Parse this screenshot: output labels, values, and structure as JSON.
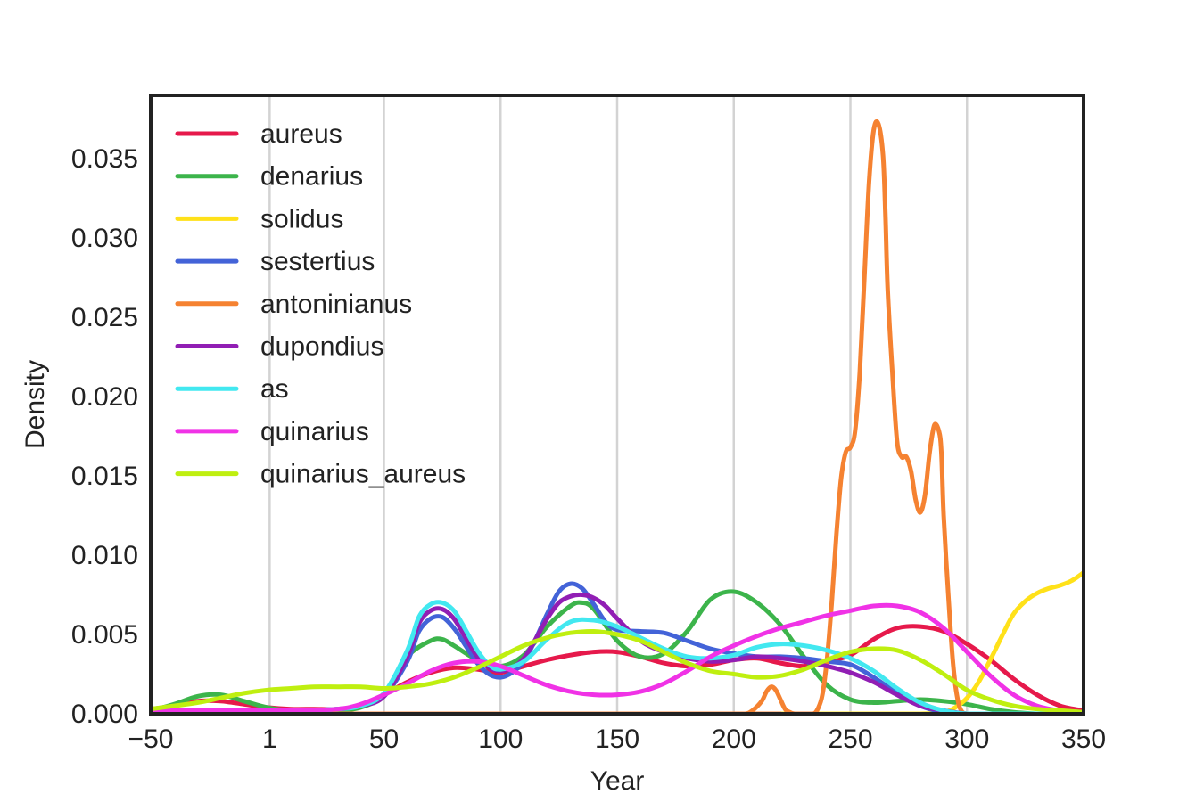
{
  "chart_data": {
    "type": "line",
    "title": "",
    "xlabel": "Year",
    "ylabel": "Density",
    "xlim": [
      -50,
      350
    ],
    "ylim": [
      0,
      0.039
    ],
    "grid": "vertical",
    "legend_position": "upper-left",
    "x_ticks": [
      {
        "value": -50,
        "label": "−50"
      },
      {
        "value": 1,
        "label": "1"
      },
      {
        "value": 50,
        "label": "50"
      },
      {
        "value": 100,
        "label": "100"
      },
      {
        "value": 150,
        "label": "150"
      },
      {
        "value": 200,
        "label": "200"
      },
      {
        "value": 250,
        "label": "250"
      },
      {
        "value": 300,
        "label": "300"
      },
      {
        "value": 350,
        "label": "350"
      }
    ],
    "y_ticks": [
      {
        "value": 0,
        "label": "0.000"
      },
      {
        "value": 0.005,
        "label": "0.005"
      },
      {
        "value": 0.01,
        "label": "0.010"
      },
      {
        "value": 0.015,
        "label": "0.015"
      },
      {
        "value": 0.02,
        "label": "0.020"
      },
      {
        "value": 0.025,
        "label": "0.025"
      },
      {
        "value": 0.03,
        "label": "0.030"
      },
      {
        "value": 0.035,
        "label": "0.035"
      }
    ],
    "series": [
      {
        "name": "aureus",
        "color": "#e6194b",
        "x": [
          -50,
          -40,
          -30,
          -20,
          -10,
          0,
          10,
          20,
          30,
          40,
          50,
          60,
          70,
          80,
          90,
          100,
          110,
          120,
          130,
          140,
          150,
          160,
          170,
          180,
          190,
          200,
          210,
          220,
          230,
          240,
          250,
          260,
          270,
          280,
          290,
          300,
          310,
          320,
          330,
          340,
          350
        ],
        "y": [
          0.0003,
          0.0005,
          0.0008,
          0.0008,
          0.0006,
          0.0004,
          0.0003,
          0.0003,
          0.0003,
          0.0005,
          0.0012,
          0.002,
          0.0026,
          0.0029,
          0.0028,
          0.0026,
          0.003,
          0.0034,
          0.0037,
          0.0039,
          0.0039,
          0.0036,
          0.0032,
          0.003,
          0.0031,
          0.0034,
          0.0035,
          0.0032,
          0.003,
          0.0033,
          0.0037,
          0.0047,
          0.0054,
          0.0055,
          0.0052,
          0.0044,
          0.0034,
          0.0022,
          0.0012,
          0.0005,
          0.0002
        ]
      },
      {
        "name": "denarius",
        "color": "#3cb44b",
        "x": [
          -50,
          -40,
          -30,
          -20,
          -10,
          0,
          10,
          20,
          30,
          40,
          50,
          60,
          70,
          75,
          80,
          90,
          100,
          110,
          120,
          130,
          135,
          140,
          150,
          160,
          170,
          180,
          190,
          200,
          210,
          220,
          230,
          240,
          250,
          260,
          270,
          280,
          290,
          300,
          310,
          320,
          330,
          340,
          350
        ],
        "y": [
          0.0002,
          0.0006,
          0.0011,
          0.0012,
          0.0008,
          0.0004,
          0.0002,
          0.0002,
          0.0002,
          0.0004,
          0.0012,
          0.0036,
          0.0046,
          0.0047,
          0.0043,
          0.0034,
          0.003,
          0.0037,
          0.0055,
          0.0068,
          0.007,
          0.0066,
          0.0046,
          0.0036,
          0.0038,
          0.0052,
          0.0072,
          0.0077,
          0.007,
          0.0056,
          0.0036,
          0.0018,
          0.0009,
          0.0007,
          0.0008,
          0.0009,
          0.0008,
          0.0006,
          0.0003,
          0.0001,
          0.0,
          0.0,
          0.0
        ]
      },
      {
        "name": "solidus",
        "color": "#ffe119",
        "x": [
          -50,
          260,
          280,
          290,
          295,
          300,
          305,
          310,
          315,
          320,
          325,
          330,
          335,
          340,
          345,
          350
        ],
        "y": [
          0,
          0,
          0,
          0.0001,
          0.0004,
          0.001,
          0.002,
          0.0034,
          0.0049,
          0.0063,
          0.0071,
          0.0076,
          0.0079,
          0.0081,
          0.0084,
          0.0089
        ]
      },
      {
        "name": "sestertius",
        "color": "#4363d8",
        "x": [
          -50,
          -30,
          -10,
          10,
          30,
          40,
          50,
          60,
          65,
          70,
          75,
          80,
          85,
          90,
          95,
          100,
          105,
          110,
          115,
          120,
          125,
          130,
          135,
          140,
          145,
          150,
          160,
          170,
          180,
          190,
          200,
          210,
          220,
          230,
          240,
          250,
          260,
          270,
          280,
          290,
          300,
          310,
          320,
          330,
          340,
          350
        ],
        "y": [
          0.0001,
          0.0002,
          0.0002,
          0.0002,
          0.0003,
          0.0005,
          0.0011,
          0.0033,
          0.0052,
          0.006,
          0.0061,
          0.0054,
          0.0043,
          0.0032,
          0.0025,
          0.0023,
          0.0026,
          0.0033,
          0.0047,
          0.0063,
          0.0077,
          0.0082,
          0.0079,
          0.0069,
          0.0058,
          0.0053,
          0.0052,
          0.0051,
          0.0046,
          0.0041,
          0.0038,
          0.0036,
          0.0036,
          0.0035,
          0.0033,
          0.0031,
          0.0023,
          0.0013,
          0.0005,
          0.0001,
          0,
          0,
          0,
          0,
          0,
          0
        ]
      },
      {
        "name": "antoninianus",
        "color": "#f58231",
        "x": [
          -50,
          200,
          205,
          208,
          212,
          214,
          216,
          218,
          220,
          222,
          224,
          226,
          230,
          234,
          236,
          238,
          240,
          242,
          244,
          246,
          248,
          250,
          252,
          254,
          256,
          258,
          260,
          262,
          264,
          265,
          266,
          268,
          270,
          272,
          274,
          276,
          278,
          280,
          282,
          284,
          286,
          288,
          289,
          290,
          292,
          294,
          296,
          298,
          300,
          302,
          350
        ],
        "y": [
          0,
          0,
          0,
          0.0002,
          0.0008,
          0.0014,
          0.0017,
          0.0015,
          0.0009,
          0.0003,
          0.0001,
          0,
          0,
          0,
          0.0003,
          0.0012,
          0.0035,
          0.007,
          0.0113,
          0.0148,
          0.0165,
          0.0168,
          0.0178,
          0.0215,
          0.0275,
          0.0335,
          0.0368,
          0.0372,
          0.0352,
          0.0316,
          0.0268,
          0.0215,
          0.0172,
          0.0162,
          0.0162,
          0.0153,
          0.0135,
          0.0127,
          0.0138,
          0.0165,
          0.0182,
          0.0178,
          0.0165,
          0.0125,
          0.0075,
          0.0032,
          0.0009,
          0.0001,
          0,
          0,
          0
        ]
      },
      {
        "name": "dupondius",
        "color": "#911eb4",
        "x": [
          -50,
          -30,
          -10,
          10,
          30,
          40,
          50,
          60,
          65,
          70,
          75,
          80,
          85,
          90,
          95,
          100,
          105,
          110,
          115,
          120,
          125,
          130,
          135,
          140,
          145,
          150,
          160,
          170,
          180,
          190,
          200,
          210,
          220,
          230,
          240,
          250,
          260,
          270,
          280,
          290,
          300,
          310,
          320,
          330,
          340,
          350
        ],
        "y": [
          0.0001,
          0.0002,
          0.0002,
          0.0002,
          0.0003,
          0.0005,
          0.0011,
          0.0036,
          0.0057,
          0.0065,
          0.0066,
          0.006,
          0.0048,
          0.0036,
          0.0029,
          0.0027,
          0.0029,
          0.0035,
          0.0047,
          0.006,
          0.007,
          0.0074,
          0.0075,
          0.0073,
          0.0068,
          0.006,
          0.0046,
          0.0039,
          0.0035,
          0.0033,
          0.0034,
          0.0036,
          0.0035,
          0.0033,
          0.003,
          0.0026,
          0.002,
          0.0012,
          0.0005,
          0.0002,
          0,
          0,
          0,
          0,
          0,
          0
        ]
      },
      {
        "name": "as",
        "color": "#42e8f0",
        "x": [
          -50,
          -30,
          -10,
          10,
          30,
          40,
          50,
          60,
          65,
          70,
          75,
          80,
          85,
          90,
          95,
          100,
          110,
          120,
          130,
          140,
          150,
          160,
          170,
          180,
          190,
          200,
          210,
          220,
          230,
          240,
          250,
          260,
          270,
          280,
          290,
          300,
          310,
          320,
          330,
          340,
          350
        ],
        "y": [
          0.0001,
          0.0002,
          0.0002,
          0.0002,
          0.0003,
          0.0005,
          0.0013,
          0.004,
          0.0061,
          0.0069,
          0.007,
          0.0065,
          0.0053,
          0.004,
          0.0031,
          0.0028,
          0.0033,
          0.0047,
          0.0058,
          0.0059,
          0.0055,
          0.0048,
          0.0041,
          0.0036,
          0.0035,
          0.0037,
          0.0042,
          0.0044,
          0.0043,
          0.004,
          0.0035,
          0.0027,
          0.0016,
          0.0007,
          0.0002,
          0,
          0,
          0,
          0,
          0,
          0
        ]
      },
      {
        "name": "quinarius",
        "color": "#f032e6",
        "x": [
          -50,
          -30,
          -10,
          10,
          30,
          40,
          50,
          60,
          70,
          80,
          90,
          100,
          110,
          120,
          130,
          140,
          150,
          160,
          170,
          180,
          190,
          200,
          210,
          220,
          230,
          240,
          250,
          260,
          270,
          280,
          290,
          300,
          310,
          320,
          330,
          340,
          350
        ],
        "y": [
          0.0002,
          0.0002,
          0.0002,
          0.0002,
          0.0003,
          0.0006,
          0.0012,
          0.0019,
          0.0027,
          0.0032,
          0.0033,
          0.003,
          0.0024,
          0.0018,
          0.0014,
          0.0012,
          0.0012,
          0.0014,
          0.0019,
          0.0027,
          0.0036,
          0.0043,
          0.0049,
          0.0054,
          0.0058,
          0.0062,
          0.0065,
          0.0068,
          0.0068,
          0.0064,
          0.0054,
          0.0039,
          0.0024,
          0.0012,
          0.0005,
          0.0002,
          0.0001
        ]
      },
      {
        "name": "quinarius_aureus",
        "color": "#bfef10",
        "x": [
          -50,
          -40,
          -30,
          -20,
          -10,
          0,
          10,
          20,
          30,
          40,
          50,
          60,
          70,
          80,
          90,
          100,
          110,
          120,
          130,
          140,
          150,
          160,
          170,
          180,
          190,
          200,
          210,
          220,
          230,
          240,
          250,
          260,
          270,
          280,
          290,
          300,
          310,
          320,
          330,
          340,
          350
        ],
        "y": [
          0.0003,
          0.0005,
          0.0007,
          0.001,
          0.0013,
          0.0015,
          0.0016,
          0.0017,
          0.0017,
          0.0017,
          0.0016,
          0.0017,
          0.0019,
          0.0023,
          0.0029,
          0.0036,
          0.0043,
          0.0048,
          0.0051,
          0.0052,
          0.005,
          0.0046,
          0.0039,
          0.0032,
          0.0027,
          0.0025,
          0.0023,
          0.0024,
          0.0028,
          0.0034,
          0.0039,
          0.0041,
          0.004,
          0.0034,
          0.0025,
          0.0015,
          0.0009,
          0.0005,
          0.0003,
          0.0002,
          0.0001
        ]
      }
    ]
  }
}
